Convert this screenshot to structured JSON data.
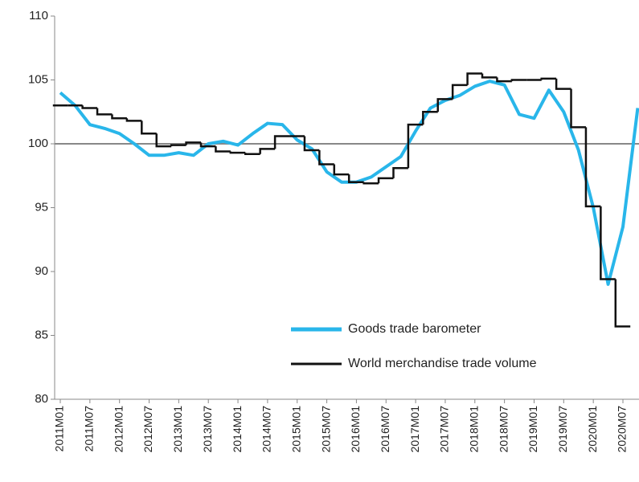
{
  "chart_data": {
    "type": "line",
    "categories": [
      "2011M01",
      null,
      "2011M07",
      null,
      "2012M01",
      null,
      "2012M07",
      null,
      "2013M01",
      null,
      "2013M07",
      null,
      "2014M01",
      null,
      "2014M07",
      null,
      "2015M01",
      null,
      "2015M07",
      null,
      "2016M01",
      null,
      "2016M07",
      null,
      "2017M01",
      null,
      "2017M07",
      null,
      "2018M01",
      null,
      "2018M07",
      null,
      "2019M01",
      null,
      "2019M07",
      null,
      "2020M01",
      null,
      "2020M07",
      null
    ],
    "series": [
      {
        "name": "Goods trade barometer",
        "color": "#29b6ea",
        "values": [
          104,
          103,
          101.5,
          101.2,
          100.8,
          100,
          99.1,
          99.1,
          99.3,
          99.1,
          100,
          100.2,
          99.9,
          100.8,
          101.6,
          101.5,
          100.3,
          99.6,
          97.8,
          97,
          97,
          97.4,
          98.2,
          99,
          101,
          102.8,
          103.4,
          103.8,
          104.5,
          104.9,
          104.6,
          102.3,
          102,
          104.2,
          102.5,
          99.5,
          95,
          89,
          93.5,
          102.8
        ]
      },
      {
        "name": "World merchandise trade volume",
        "color": "#111111",
        "step": true,
        "values": [
          103,
          103,
          102.8,
          102.3,
          102,
          101.8,
          100.8,
          99.8,
          99.9,
          100.1,
          99.8,
          99.4,
          99.3,
          99.2,
          99.6,
          100.6,
          100.6,
          99.5,
          98.4,
          97.6,
          97,
          96.9,
          97.3,
          98.1,
          101.5,
          102.5,
          103.5,
          104.6,
          105.5,
          105.2,
          104.9,
          105,
          105,
          105.1,
          104.3,
          101.3,
          95.1,
          89.4,
          85.7,
          null
        ]
      }
    ],
    "ylim": [
      80,
      110
    ],
    "yticks": [
      80,
      85,
      90,
      95,
      100,
      105,
      110
    ],
    "hline": 100,
    "legend": "lower right"
  }
}
